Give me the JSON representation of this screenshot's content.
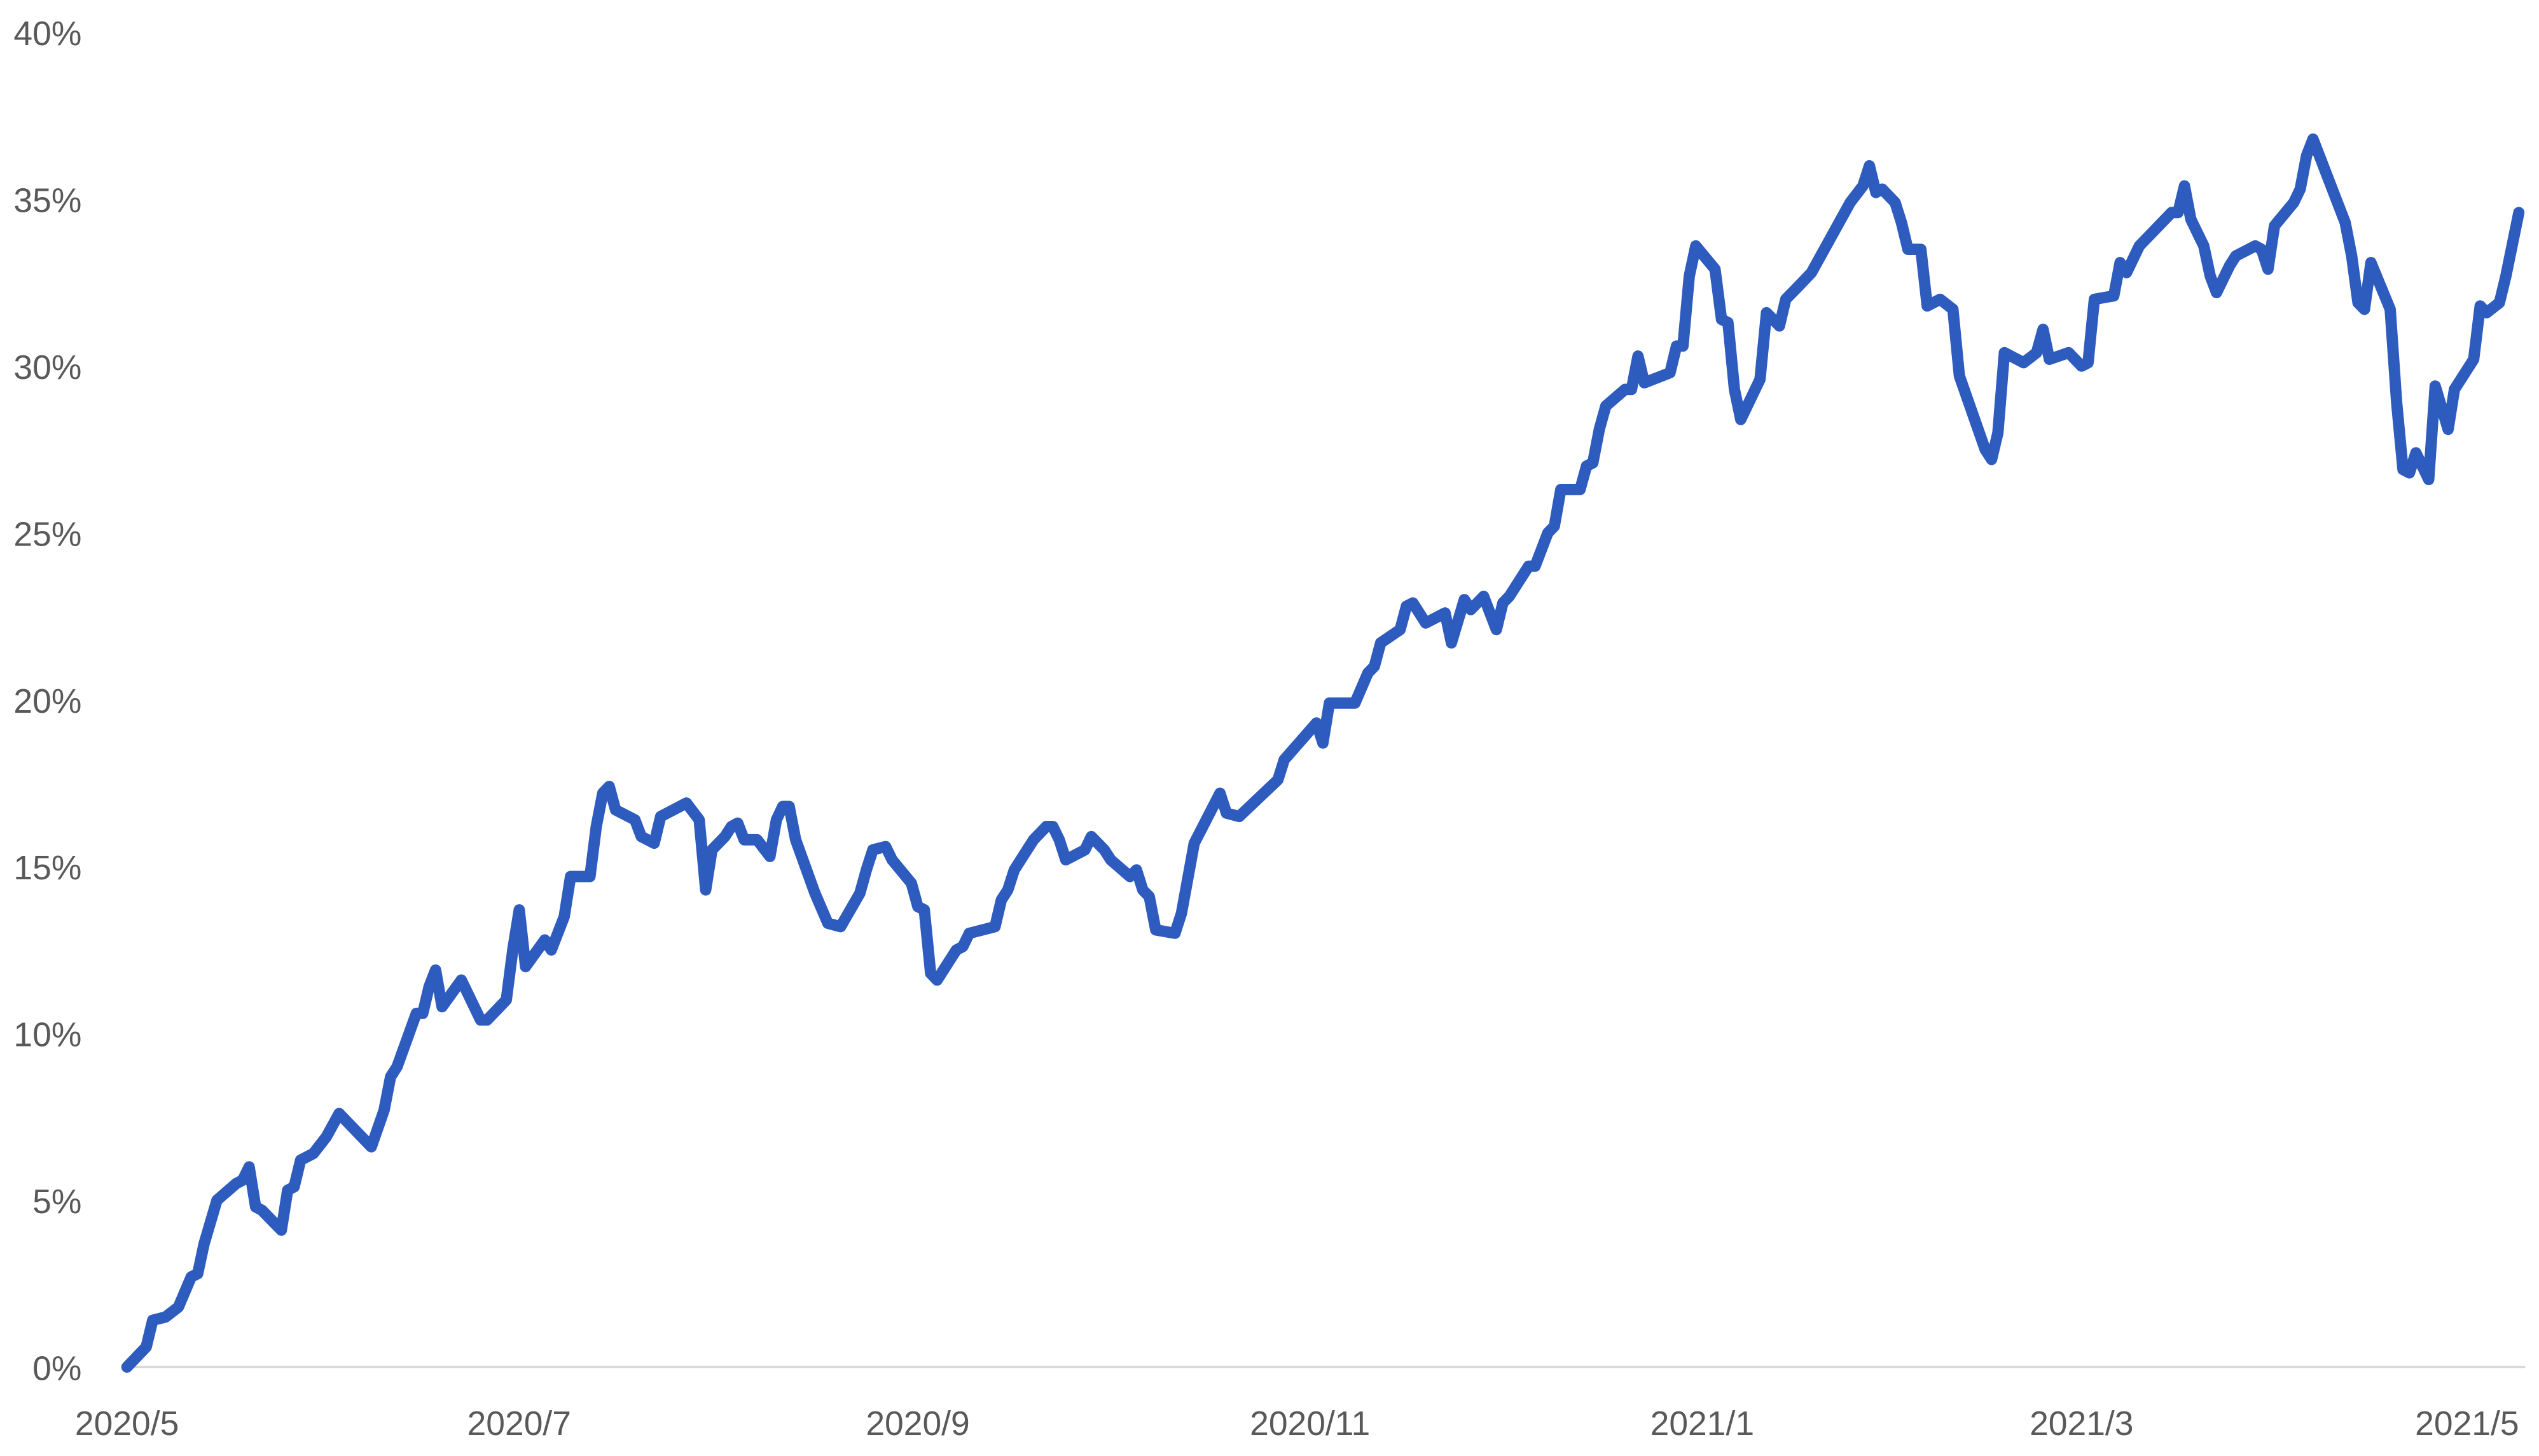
{
  "chart_data": {
    "type": "line",
    "title": "",
    "xlabel": "",
    "ylabel": "",
    "ylim": [
      0,
      40
    ],
    "yticks": [
      "0%",
      "5%",
      "10%",
      "15%",
      "20%",
      "25%",
      "30%",
      "35%",
      "40%"
    ],
    "ytick_values": [
      0,
      5,
      10,
      15,
      20,
      25,
      30,
      35,
      40
    ],
    "xticks": [
      "2020/5",
      "2020/7",
      "2020/9",
      "2020/11",
      "2021/1",
      "2021/3",
      "2021/5"
    ],
    "xtick_dates": [
      "2020-05-01",
      "2020-07-01",
      "2020-09-01",
      "2020-11-01",
      "2021-01-01",
      "2021-03-01",
      "2021-05-01"
    ],
    "grid": false,
    "line_color": "#2E5BBE",
    "axis_color": "#D9D9D9",
    "series": [
      {
        "points": [
          [
            "2020-05-01",
            0.0
          ],
          [
            "2020-05-04",
            0.6
          ],
          [
            "2020-05-05",
            1.4
          ],
          [
            "2020-05-07",
            1.5
          ],
          [
            "2020-05-09",
            1.8
          ],
          [
            "2020-05-11",
            2.7
          ],
          [
            "2020-05-12",
            2.8
          ],
          [
            "2020-05-13",
            3.7
          ],
          [
            "2020-05-15",
            5.0
          ],
          [
            "2020-05-18",
            5.5
          ],
          [
            "2020-05-19",
            5.6
          ],
          [
            "2020-05-20",
            6.0
          ],
          [
            "2020-05-21",
            4.8
          ],
          [
            "2020-05-22",
            4.7
          ],
          [
            "2020-05-25",
            4.1
          ],
          [
            "2020-05-26",
            5.3
          ],
          [
            "2020-05-27",
            5.4
          ],
          [
            "2020-05-28",
            6.2
          ],
          [
            "2020-05-30",
            6.4
          ],
          [
            "2020-06-01",
            6.9
          ],
          [
            "2020-06-03",
            7.6
          ],
          [
            "2020-06-08",
            6.6
          ],
          [
            "2020-06-10",
            7.7
          ],
          [
            "2020-06-11",
            8.7
          ],
          [
            "2020-06-12",
            9.0
          ],
          [
            "2020-06-15",
            10.6
          ],
          [
            "2020-06-16",
            10.6
          ],
          [
            "2020-06-17",
            11.4
          ],
          [
            "2020-06-18",
            11.9
          ],
          [
            "2020-06-19",
            10.8
          ],
          [
            "2020-06-22",
            11.6
          ],
          [
            "2020-06-25",
            10.4
          ],
          [
            "2020-06-26",
            10.4
          ],
          [
            "2020-06-29",
            11.0
          ],
          [
            "2020-06-30",
            12.5
          ],
          [
            "2020-07-01",
            13.7
          ],
          [
            "2020-07-02",
            12.0
          ],
          [
            "2020-07-05",
            12.8
          ],
          [
            "2020-07-06",
            12.5
          ],
          [
            "2020-07-08",
            13.5
          ],
          [
            "2020-07-09",
            14.7
          ],
          [
            "2020-07-12",
            14.7
          ],
          [
            "2020-07-13",
            16.2
          ],
          [
            "2020-07-14",
            17.2
          ],
          [
            "2020-07-15",
            17.4
          ],
          [
            "2020-07-16",
            16.7
          ],
          [
            "2020-07-19",
            16.4
          ],
          [
            "2020-07-20",
            15.9
          ],
          [
            "2020-07-22",
            15.7
          ],
          [
            "2020-07-23",
            16.5
          ],
          [
            "2020-07-27",
            16.9
          ],
          [
            "2020-07-29",
            16.4
          ],
          [
            "2020-07-30",
            14.3
          ],
          [
            "2020-07-31",
            15.5
          ],
          [
            "2020-08-02",
            15.9
          ],
          [
            "2020-08-03",
            16.2
          ],
          [
            "2020-08-04",
            16.3
          ],
          [
            "2020-08-05",
            15.8
          ],
          [
            "2020-08-07",
            15.8
          ],
          [
            "2020-08-09",
            15.3
          ],
          [
            "2020-08-10",
            16.4
          ],
          [
            "2020-08-11",
            16.8
          ],
          [
            "2020-08-12",
            16.8
          ],
          [
            "2020-08-13",
            15.8
          ],
          [
            "2020-08-16",
            14.2
          ],
          [
            "2020-08-18",
            13.3
          ],
          [
            "2020-08-20",
            13.2
          ],
          [
            "2020-08-23",
            14.2
          ],
          [
            "2020-08-24",
            14.9
          ],
          [
            "2020-08-25",
            15.5
          ],
          [
            "2020-08-27",
            15.6
          ],
          [
            "2020-08-28",
            15.2
          ],
          [
            "2020-08-31",
            14.5
          ],
          [
            "2020-09-01",
            13.8
          ],
          [
            "2020-09-02",
            13.7
          ],
          [
            "2020-09-03",
            11.8
          ],
          [
            "2020-09-04",
            11.6
          ],
          [
            "2020-09-07",
            12.5
          ],
          [
            "2020-09-08",
            12.6
          ],
          [
            "2020-09-09",
            13.0
          ],
          [
            "2020-09-13",
            13.2
          ],
          [
            "2020-09-14",
            14.0
          ],
          [
            "2020-09-15",
            14.3
          ],
          [
            "2020-09-16",
            14.9
          ],
          [
            "2020-09-19",
            15.8
          ],
          [
            "2020-09-21",
            16.2
          ],
          [
            "2020-09-22",
            16.2
          ],
          [
            "2020-09-23",
            15.8
          ],
          [
            "2020-09-24",
            15.2
          ],
          [
            "2020-09-27",
            15.5
          ],
          [
            "2020-09-28",
            15.9
          ],
          [
            "2020-09-30",
            15.5
          ],
          [
            "2020-10-01",
            15.2
          ],
          [
            "2020-10-04",
            14.7
          ],
          [
            "2020-10-05",
            14.9
          ],
          [
            "2020-10-06",
            14.3
          ],
          [
            "2020-10-07",
            14.1
          ],
          [
            "2020-10-08",
            13.1
          ],
          [
            "2020-10-11",
            13.0
          ],
          [
            "2020-10-12",
            13.6
          ],
          [
            "2020-10-14",
            15.7
          ],
          [
            "2020-10-18",
            17.2
          ],
          [
            "2020-10-19",
            16.6
          ],
          [
            "2020-10-21",
            16.5
          ],
          [
            "2020-10-27",
            17.6
          ],
          [
            "2020-10-28",
            18.2
          ],
          [
            "2020-11-02",
            19.3
          ],
          [
            "2020-11-03",
            18.7
          ],
          [
            "2020-11-04",
            19.9
          ],
          [
            "2020-11-08",
            19.9
          ],
          [
            "2020-11-10",
            20.8
          ],
          [
            "2020-11-11",
            21.0
          ],
          [
            "2020-11-12",
            21.7
          ],
          [
            "2020-11-15",
            22.1
          ],
          [
            "2020-11-16",
            22.8
          ],
          [
            "2020-11-17",
            22.9
          ],
          [
            "2020-11-19",
            22.3
          ],
          [
            "2020-11-22",
            22.6
          ],
          [
            "2020-11-23",
            21.7
          ],
          [
            "2020-11-25",
            23.0
          ],
          [
            "2020-11-26",
            22.7
          ],
          [
            "2020-11-28",
            23.1
          ],
          [
            "2020-11-30",
            22.1
          ],
          [
            "2020-12-01",
            22.9
          ],
          [
            "2020-12-02",
            23.1
          ],
          [
            "2020-12-05",
            24.0
          ],
          [
            "2020-12-06",
            24.0
          ],
          [
            "2020-12-08",
            25.0
          ],
          [
            "2020-12-09",
            25.2
          ],
          [
            "2020-12-10",
            26.3
          ],
          [
            "2020-12-13",
            26.3
          ],
          [
            "2020-12-14",
            27.0
          ],
          [
            "2020-12-15",
            27.1
          ],
          [
            "2020-12-16",
            28.1
          ],
          [
            "2020-12-17",
            28.8
          ],
          [
            "2020-12-20",
            29.3
          ],
          [
            "2020-12-21",
            29.3
          ],
          [
            "2020-12-22",
            30.3
          ],
          [
            "2020-12-23",
            29.5
          ],
          [
            "2020-12-27",
            29.8
          ],
          [
            "2020-12-28",
            30.6
          ],
          [
            "2020-12-29",
            30.6
          ],
          [
            "2020-12-30",
            32.7
          ],
          [
            "2020-12-31",
            33.6
          ],
          [
            "2021-01-03",
            32.9
          ],
          [
            "2021-01-04",
            31.4
          ],
          [
            "2021-01-05",
            31.3
          ],
          [
            "2021-01-06",
            29.3
          ],
          [
            "2021-01-07",
            28.4
          ],
          [
            "2021-01-10",
            29.6
          ],
          [
            "2021-01-11",
            31.6
          ],
          [
            "2021-01-13",
            31.2
          ],
          [
            "2021-01-14",
            32.0
          ],
          [
            "2021-01-16",
            32.4
          ],
          [
            "2021-01-18",
            32.8
          ],
          [
            "2021-01-24",
            34.9
          ],
          [
            "2021-01-26",
            35.4
          ],
          [
            "2021-01-27",
            36.0
          ],
          [
            "2021-01-28",
            35.2
          ],
          [
            "2021-01-29",
            35.3
          ],
          [
            "2021-01-31",
            34.9
          ],
          [
            "2021-02-01",
            34.3
          ],
          [
            "2021-02-02",
            33.5
          ],
          [
            "2021-02-04",
            33.5
          ],
          [
            "2021-02-05",
            31.8
          ],
          [
            "2021-02-07",
            32.0
          ],
          [
            "2021-02-09",
            31.7
          ],
          [
            "2021-02-10",
            29.7
          ],
          [
            "2021-02-14",
            27.5
          ],
          [
            "2021-02-15",
            27.2
          ],
          [
            "2021-02-16",
            28.0
          ],
          [
            "2021-02-17",
            30.4
          ],
          [
            "2021-02-20",
            30.1
          ],
          [
            "2021-02-22",
            30.4
          ],
          [
            "2021-02-23",
            31.1
          ],
          [
            "2021-02-24",
            30.2
          ],
          [
            "2021-02-27",
            30.4
          ],
          [
            "2021-03-01",
            30.0
          ],
          [
            "2021-03-02",
            30.1
          ],
          [
            "2021-03-03",
            32.0
          ],
          [
            "2021-03-06",
            32.1
          ],
          [
            "2021-03-07",
            33.1
          ],
          [
            "2021-03-08",
            32.8
          ],
          [
            "2021-03-10",
            33.6
          ],
          [
            "2021-03-15",
            34.6
          ],
          [
            "2021-03-16",
            34.6
          ],
          [
            "2021-03-17",
            35.4
          ],
          [
            "2021-03-18",
            34.4
          ],
          [
            "2021-03-20",
            33.6
          ],
          [
            "2021-03-21",
            32.7
          ],
          [
            "2021-03-22",
            32.2
          ],
          [
            "2021-03-24",
            33.0
          ],
          [
            "2021-03-25",
            33.3
          ],
          [
            "2021-03-28",
            33.6
          ],
          [
            "2021-03-29",
            33.5
          ],
          [
            "2021-03-30",
            32.9
          ],
          [
            "2021-03-31",
            34.2
          ],
          [
            "2021-04-03",
            34.9
          ],
          [
            "2021-04-04",
            35.3
          ],
          [
            "2021-04-05",
            36.3
          ],
          [
            "2021-04-06",
            36.8
          ],
          [
            "2021-04-11",
            34.3
          ],
          [
            "2021-04-12",
            33.3
          ],
          [
            "2021-04-13",
            31.9
          ],
          [
            "2021-04-14",
            31.7
          ],
          [
            "2021-04-15",
            33.1
          ],
          [
            "2021-04-18",
            31.7
          ],
          [
            "2021-04-19",
            28.9
          ],
          [
            "2021-04-20",
            26.9
          ],
          [
            "2021-04-21",
            26.8
          ],
          [
            "2021-04-22",
            27.4
          ],
          [
            "2021-04-24",
            26.6
          ],
          [
            "2021-04-25",
            29.4
          ],
          [
            "2021-04-27",
            28.1
          ],
          [
            "2021-04-28",
            29.3
          ],
          [
            "2021-05-01",
            30.2
          ],
          [
            "2021-05-02",
            31.8
          ],
          [
            "2021-05-03",
            31.6
          ],
          [
            "2021-05-05",
            31.9
          ],
          [
            "2021-05-06",
            32.7
          ],
          [
            "2021-05-08",
            34.6
          ]
        ]
      }
    ]
  }
}
